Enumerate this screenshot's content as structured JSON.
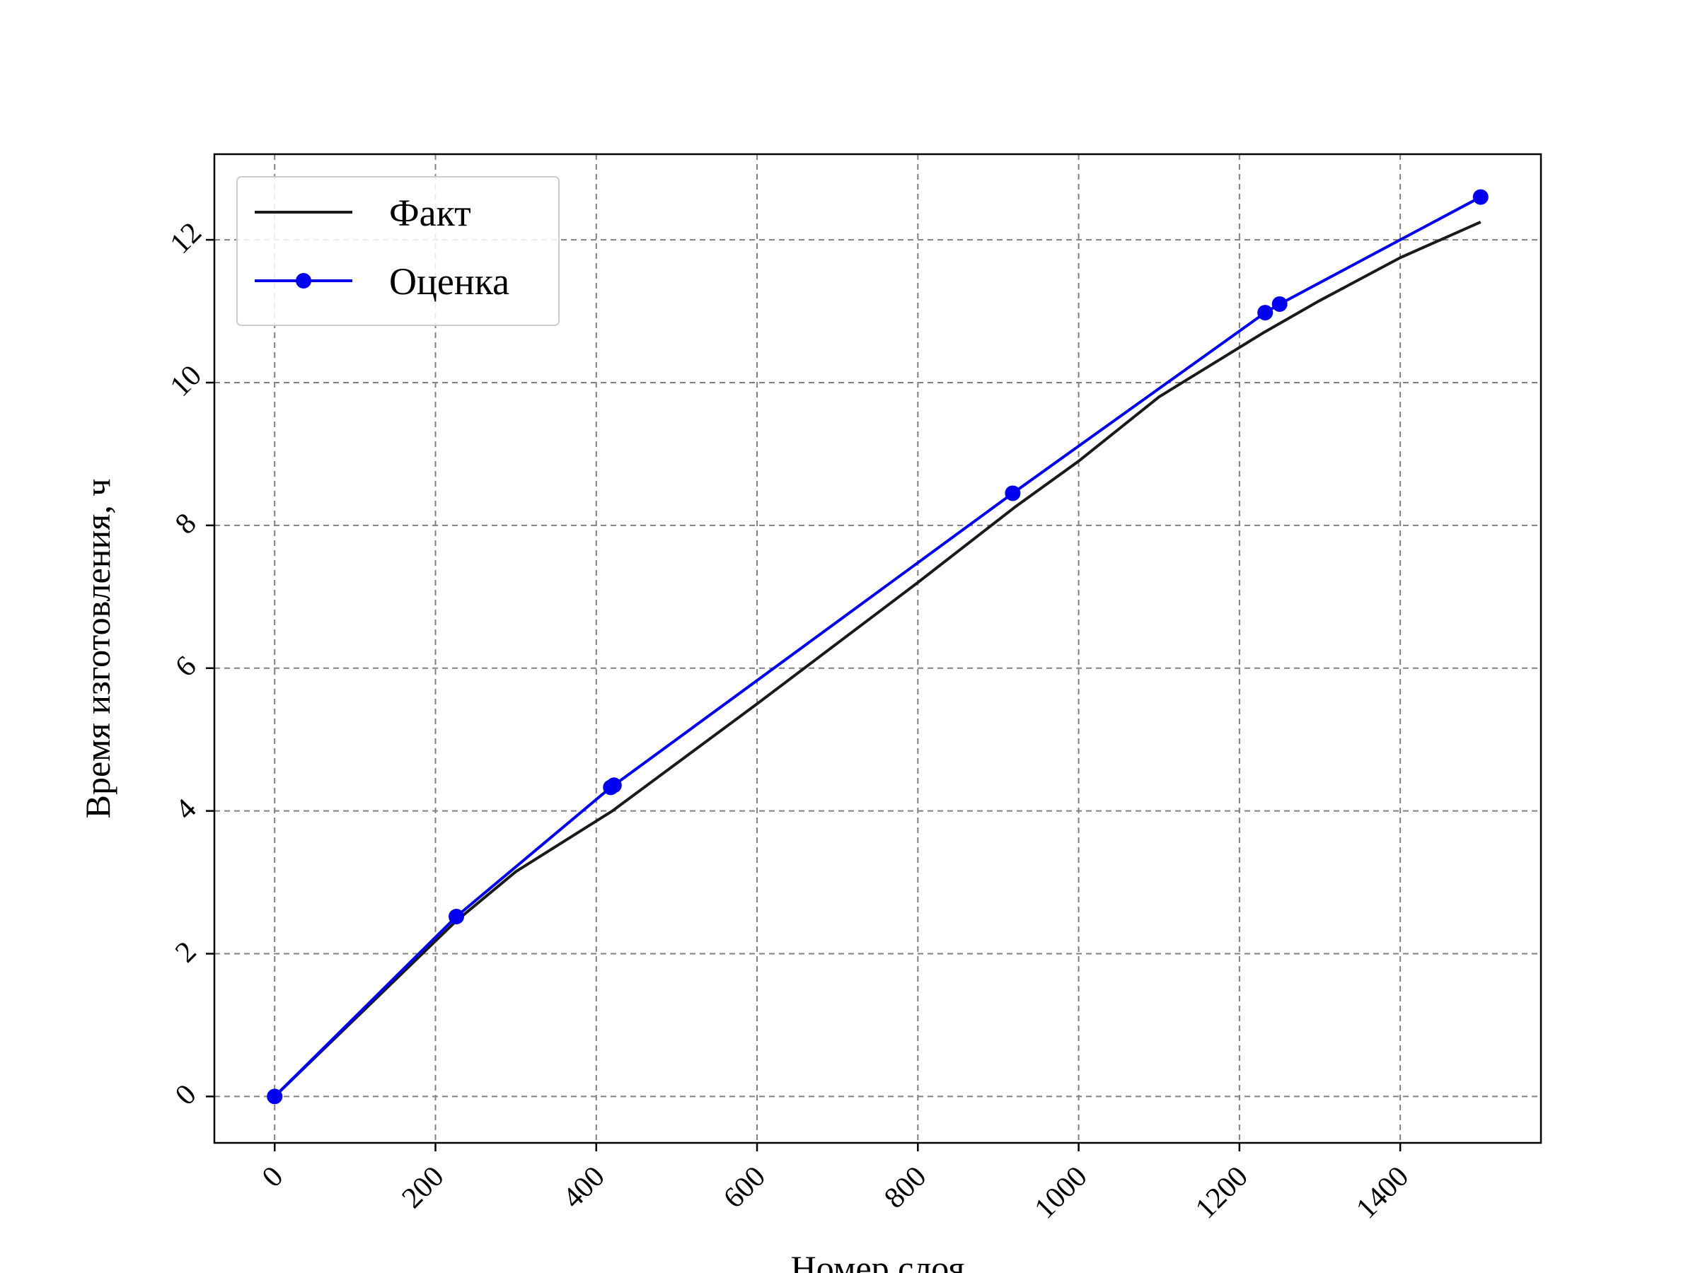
{
  "chart_data": {
    "type": "line",
    "xlabel": "Номер слоя",
    "ylabel": "Время изготовления, ч",
    "xlim": [
      -75,
      1575
    ],
    "ylim": [
      -0.65,
      13.2
    ],
    "xticks": [
      0,
      200,
      400,
      600,
      800,
      1000,
      1200,
      1400
    ],
    "yticks": [
      0,
      2,
      4,
      6,
      8,
      10,
      12
    ],
    "xtick_labels": [
      "0",
      "200",
      "400",
      "600",
      "800",
      "1000",
      "1200",
      "1400"
    ],
    "ytick_labels": [
      "0",
      "2",
      "4",
      "6",
      "8",
      "10",
      "12"
    ],
    "grid": true,
    "legend_position": "top-left",
    "series": [
      {
        "name": "Факт",
        "color": "#1a1a1a",
        "marker": "none",
        "x": [
          0,
          225,
          300,
          420,
          600,
          800,
          920,
          1000,
          1100,
          1230,
          1300,
          1400,
          1500
        ],
        "y": [
          0,
          2.45,
          3.15,
          4.0,
          5.5,
          7.2,
          8.25,
          8.9,
          9.8,
          10.7,
          11.15,
          11.75,
          12.25
        ]
      },
      {
        "name": "Оценка",
        "color": "#0000ee",
        "marker": "circle",
        "x": [
          0,
          226,
          418,
          422,
          918,
          1232,
          1250,
          1500
        ],
        "y": [
          0,
          2.52,
          4.33,
          4.36,
          8.45,
          10.98,
          11.1,
          12.6
        ]
      }
    ]
  }
}
